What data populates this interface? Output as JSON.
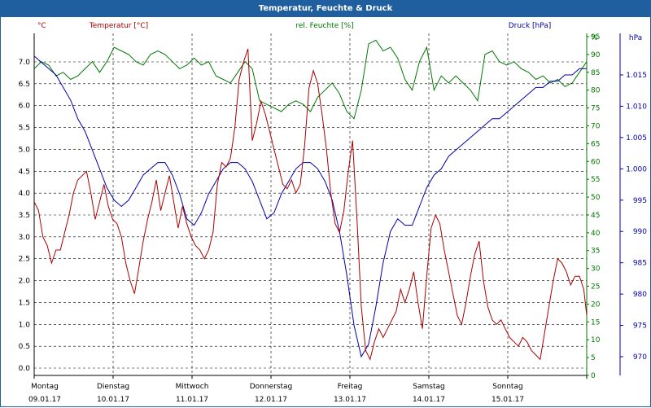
{
  "window": {
    "title": "Temperatur, Feuchte & Druck"
  },
  "chart_data": {
    "type": "line",
    "title": "Temperatur, Feuchte & Druck",
    "x_labels": [
      {
        "day": "Montag",
        "date": "09.01.17"
      },
      {
        "day": "Dienstag",
        "date": "10.01.17"
      },
      {
        "day": "Mittwoch",
        "date": "11.01.17"
      },
      {
        "day": "Donnerstag",
        "date": "12.01.17"
      },
      {
        "day": "Freitag",
        "date": "13.01.17"
      },
      {
        "day": "Samstag",
        "date": "14.01.17"
      },
      {
        "day": "Sonntag",
        "date": "15.01.17"
      }
    ],
    "x_domain": [
      0,
      7.0
    ],
    "temperature": {
      "legend": "Temperatur [°C]",
      "unit_label": "°C",
      "color": "#aa0000",
      "ylim": [
        -0.2,
        7.6
      ],
      "ticks": [
        "0.0",
        "0.5",
        "1.0",
        "1.5",
        "2.0",
        "2.5",
        "3.0",
        "3.5",
        "4.0",
        "4.5",
        "5.0",
        "5.5",
        "6.0",
        "6.5",
        "7.0"
      ],
      "tick_values": [
        0,
        0.5,
        1,
        1.5,
        2,
        2.5,
        3,
        3.5,
        4,
        4.5,
        5,
        5.5,
        6,
        6.5,
        7
      ],
      "series": [
        [
          0.0,
          3.8
        ],
        [
          0.06,
          3.6
        ],
        [
          0.12,
          3.0
        ],
        [
          0.18,
          2.8
        ],
        [
          0.24,
          2.4
        ],
        [
          0.3,
          2.7
        ],
        [
          0.36,
          2.7
        ],
        [
          0.42,
          3.1
        ],
        [
          0.48,
          3.5
        ],
        [
          0.54,
          4.0
        ],
        [
          0.6,
          4.3
        ],
        [
          0.66,
          4.4
        ],
        [
          0.72,
          4.5
        ],
        [
          0.78,
          4.0
        ],
        [
          0.84,
          3.4
        ],
        [
          0.9,
          3.8
        ],
        [
          0.96,
          4.2
        ],
        [
          1.02,
          3.7
        ],
        [
          1.08,
          3.4
        ],
        [
          1.14,
          3.3
        ],
        [
          1.2,
          3.0
        ],
        [
          1.26,
          2.4
        ],
        [
          1.32,
          2.0
        ],
        [
          1.38,
          1.7
        ],
        [
          1.44,
          2.3
        ],
        [
          1.5,
          2.9
        ],
        [
          1.56,
          3.4
        ],
        [
          1.62,
          3.8
        ],
        [
          1.68,
          4.3
        ],
        [
          1.74,
          3.6
        ],
        [
          1.8,
          4.0
        ],
        [
          1.86,
          4.4
        ],
        [
          1.92,
          3.8
        ],
        [
          1.98,
          3.2
        ],
        [
          2.04,
          3.7
        ],
        [
          2.1,
          3.3
        ],
        [
          2.16,
          3.0
        ],
        [
          2.22,
          2.8
        ],
        [
          2.28,
          2.7
        ],
        [
          2.34,
          2.5
        ],
        [
          2.4,
          2.7
        ],
        [
          2.46,
          3.1
        ],
        [
          2.52,
          4.2
        ],
        [
          2.58,
          4.7
        ],
        [
          2.64,
          4.6
        ],
        [
          2.7,
          4.8
        ],
        [
          2.76,
          5.5
        ],
        [
          2.82,
          6.6
        ],
        [
          2.88,
          7.0
        ],
        [
          2.94,
          7.3
        ],
        [
          3.0,
          5.2
        ],
        [
          3.06,
          5.6
        ],
        [
          3.12,
          6.1
        ],
        [
          3.18,
          5.8
        ],
        [
          3.24,
          5.4
        ],
        [
          3.3,
          5.0
        ],
        [
          3.36,
          4.6
        ],
        [
          3.42,
          4.2
        ],
        [
          3.48,
          4.1
        ],
        [
          3.54,
          4.3
        ],
        [
          3.6,
          4.0
        ],
        [
          3.66,
          4.2
        ],
        [
          3.72,
          5.1
        ],
        [
          3.78,
          6.4
        ],
        [
          3.84,
          6.8
        ],
        [
          3.9,
          6.5
        ],
        [
          3.96,
          5.8
        ],
        [
          4.02,
          5.0
        ],
        [
          4.08,
          4.0
        ],
        [
          4.14,
          3.3
        ],
        [
          4.2,
          3.1
        ],
        [
          4.26,
          3.6
        ],
        [
          4.32,
          4.5
        ],
        [
          4.38,
          5.2
        ],
        [
          4.44,
          3.4
        ],
        [
          4.5,
          1.4
        ],
        [
          4.56,
          0.4
        ],
        [
          4.62,
          0.2
        ],
        [
          4.68,
          0.6
        ],
        [
          4.74,
          0.9
        ],
        [
          4.8,
          0.7
        ],
        [
          4.86,
          0.9
        ],
        [
          4.92,
          1.1
        ],
        [
          4.98,
          1.3
        ],
        [
          5.04,
          1.8
        ],
        [
          5.1,
          1.5
        ],
        [
          5.16,
          1.8
        ],
        [
          5.22,
          2.2
        ],
        [
          5.28,
          1.5
        ],
        [
          5.34,
          0.9
        ],
        [
          5.4,
          2.1
        ],
        [
          5.46,
          3.2
        ],
        [
          5.52,
          3.5
        ],
        [
          5.58,
          3.3
        ],
        [
          5.64,
          2.7
        ],
        [
          5.7,
          2.2
        ],
        [
          5.76,
          1.7
        ],
        [
          5.82,
          1.2
        ],
        [
          5.88,
          1.0
        ],
        [
          5.94,
          1.5
        ],
        [
          6.0,
          2.1
        ],
        [
          6.06,
          2.6
        ],
        [
          6.12,
          2.9
        ],
        [
          6.18,
          2.0
        ],
        [
          6.24,
          1.4
        ],
        [
          6.3,
          1.1
        ],
        [
          6.36,
          1.0
        ],
        [
          6.42,
          1.1
        ],
        [
          6.48,
          0.9
        ],
        [
          6.54,
          0.7
        ],
        [
          6.6,
          0.6
        ],
        [
          6.66,
          0.5
        ],
        [
          6.72,
          0.7
        ],
        [
          6.78,
          0.6
        ],
        [
          6.84,
          0.4
        ],
        [
          6.9,
          0.3
        ],
        [
          6.96,
          0.2
        ],
        [
          7.02,
          0.8
        ],
        [
          7.08,
          1.4
        ],
        [
          7.14,
          2.0
        ],
        [
          7.2,
          2.5
        ],
        [
          7.26,
          2.4
        ],
        [
          7.32,
          2.2
        ],
        [
          7.38,
          1.9
        ],
        [
          7.44,
          2.1
        ],
        [
          7.5,
          2.1
        ],
        [
          7.56,
          1.8
        ],
        [
          7.6,
          1.2
        ]
      ]
    },
    "humidity": {
      "legend": "rel. Feuchte [%]",
      "unit_label": "%",
      "color": "#007700",
      "ylim": [
        0,
        97
      ],
      "ticks": [
        "0",
        "5",
        "10",
        "15",
        "20",
        "25",
        "30",
        "35",
        "40",
        "45",
        "50",
        "55",
        "60",
        "65",
        "70",
        "75",
        "80",
        "85",
        "90",
        "95"
      ],
      "tick_values": [
        0,
        5,
        10,
        15,
        20,
        25,
        30,
        35,
        40,
        45,
        50,
        55,
        60,
        65,
        70,
        75,
        80,
        85,
        90,
        95
      ],
      "series": [
        [
          0.0,
          86
        ],
        [
          0.1,
          88
        ],
        [
          0.2,
          87
        ],
        [
          0.3,
          84
        ],
        [
          0.4,
          85
        ],
        [
          0.5,
          83
        ],
        [
          0.6,
          84
        ],
        [
          0.7,
          86
        ],
        [
          0.8,
          88
        ],
        [
          0.9,
          85
        ],
        [
          1.0,
          88
        ],
        [
          1.1,
          92
        ],
        [
          1.2,
          91
        ],
        [
          1.3,
          90
        ],
        [
          1.4,
          88
        ],
        [
          1.5,
          87
        ],
        [
          1.6,
          90
        ],
        [
          1.7,
          91
        ],
        [
          1.8,
          90
        ],
        [
          1.9,
          88
        ],
        [
          2.0,
          86
        ],
        [
          2.1,
          87
        ],
        [
          2.2,
          89
        ],
        [
          2.3,
          87
        ],
        [
          2.4,
          88
        ],
        [
          2.5,
          84
        ],
        [
          2.6,
          83
        ],
        [
          2.7,
          82
        ],
        [
          2.8,
          85
        ],
        [
          2.9,
          88
        ],
        [
          3.0,
          86
        ],
        [
          3.1,
          77
        ],
        [
          3.2,
          76
        ],
        [
          3.3,
          75
        ],
        [
          3.4,
          74
        ],
        [
          3.5,
          76
        ],
        [
          3.6,
          77
        ],
        [
          3.7,
          76
        ],
        [
          3.8,
          74
        ],
        [
          3.9,
          78
        ],
        [
          4.0,
          80
        ],
        [
          4.1,
          82
        ],
        [
          4.2,
          79
        ],
        [
          4.3,
          74
        ],
        [
          4.4,
          72
        ],
        [
          4.5,
          80
        ],
        [
          4.6,
          93
        ],
        [
          4.7,
          94
        ],
        [
          4.8,
          91
        ],
        [
          4.9,
          92
        ],
        [
          5.0,
          89
        ],
        [
          5.1,
          83
        ],
        [
          5.2,
          80
        ],
        [
          5.3,
          88
        ],
        [
          5.4,
          92
        ],
        [
          5.5,
          80
        ],
        [
          5.6,
          84
        ],
        [
          5.7,
          82
        ],
        [
          5.8,
          84
        ],
        [
          5.9,
          82
        ],
        [
          6.0,
          80
        ],
        [
          6.1,
          77
        ],
        [
          6.2,
          90
        ],
        [
          6.3,
          91
        ],
        [
          6.4,
          88
        ],
        [
          6.5,
          87
        ],
        [
          6.6,
          88
        ],
        [
          6.7,
          86
        ],
        [
          6.8,
          85
        ],
        [
          6.9,
          83
        ],
        [
          7.0,
          84
        ],
        [
          7.1,
          82
        ],
        [
          7.2,
          83
        ],
        [
          7.3,
          81
        ],
        [
          7.4,
          82
        ],
        [
          7.5,
          85
        ],
        [
          7.6,
          88
        ]
      ]
    },
    "pressure": {
      "legend": "Druck [hPa]",
      "unit_label": "hPa",
      "color": "#0000aa",
      "ylim": [
        965,
        1024
      ],
      "ticks": [
        "970",
        "975",
        "980",
        "985",
        "990",
        "995",
        "1.000",
        "1.005",
        "1.010",
        "1.015"
      ],
      "tick_values": [
        970,
        975,
        980,
        985,
        990,
        995,
        1000,
        1005,
        1010,
        1015
      ],
      "series": [
        [
          0.0,
          1018
        ],
        [
          0.1,
          1017
        ],
        [
          0.2,
          1016
        ],
        [
          0.3,
          1015
        ],
        [
          0.4,
          1013
        ],
        [
          0.5,
          1011
        ],
        [
          0.6,
          1008
        ],
        [
          0.7,
          1006
        ],
        [
          0.8,
          1003
        ],
        [
          0.9,
          1000
        ],
        [
          1.0,
          997
        ],
        [
          1.1,
          995
        ],
        [
          1.2,
          994
        ],
        [
          1.3,
          995
        ],
        [
          1.4,
          997
        ],
        [
          1.5,
          999
        ],
        [
          1.6,
          1000
        ],
        [
          1.7,
          1001
        ],
        [
          1.8,
          1001
        ],
        [
          1.9,
          999
        ],
        [
          2.0,
          996
        ],
        [
          2.1,
          992
        ],
        [
          2.2,
          991
        ],
        [
          2.3,
          993
        ],
        [
          2.4,
          996
        ],
        [
          2.5,
          998
        ],
        [
          2.6,
          1000
        ],
        [
          2.7,
          1001
        ],
        [
          2.8,
          1001
        ],
        [
          2.9,
          1000
        ],
        [
          3.0,
          998
        ],
        [
          3.1,
          995
        ],
        [
          3.2,
          992
        ],
        [
          3.3,
          993
        ],
        [
          3.4,
          996
        ],
        [
          3.5,
          998
        ],
        [
          3.6,
          1000
        ],
        [
          3.7,
          1001
        ],
        [
          3.8,
          1001
        ],
        [
          3.9,
          1000
        ],
        [
          4.0,
          998
        ],
        [
          4.1,
          995
        ],
        [
          4.2,
          990
        ],
        [
          4.3,
          983
        ],
        [
          4.4,
          975
        ],
        [
          4.5,
          970
        ],
        [
          4.6,
          972
        ],
        [
          4.7,
          978
        ],
        [
          4.8,
          985
        ],
        [
          4.9,
          990
        ],
        [
          5.0,
          992
        ],
        [
          5.1,
          991
        ],
        [
          5.2,
          991
        ],
        [
          5.3,
          994
        ],
        [
          5.4,
          997
        ],
        [
          5.5,
          999
        ],
        [
          5.6,
          1000
        ],
        [
          5.7,
          1002
        ],
        [
          5.8,
          1003
        ],
        [
          5.9,
          1004
        ],
        [
          6.0,
          1005
        ],
        [
          6.1,
          1006
        ],
        [
          6.2,
          1007
        ],
        [
          6.3,
          1008
        ],
        [
          6.4,
          1008
        ],
        [
          6.5,
          1009
        ],
        [
          6.6,
          1010
        ],
        [
          6.7,
          1011
        ],
        [
          6.8,
          1012
        ],
        [
          6.9,
          1013
        ],
        [
          7.0,
          1013
        ],
        [
          7.1,
          1014
        ],
        [
          7.2,
          1014
        ],
        [
          7.3,
          1015
        ],
        [
          7.4,
          1015
        ],
        [
          7.5,
          1016
        ],
        [
          7.6,
          1016
        ]
      ]
    }
  }
}
